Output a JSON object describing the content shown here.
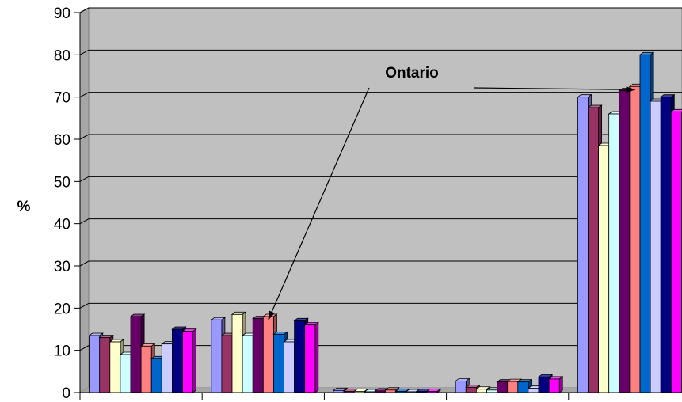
{
  "chart_data": {
    "type": "bar",
    "style": "3d-clustered-column",
    "title": "",
    "xlabel": "",
    "ylabel": "%",
    "ylim": [
      0,
      90
    ],
    "yticks": [
      0,
      10,
      20,
      30,
      40,
      50,
      60,
      70,
      80,
      90
    ],
    "grid": true,
    "categories": [
      "",
      "",
      "",
      "",
      ""
    ],
    "series": [
      {
        "color": "#9999ff",
        "values": [
          13.5,
          17.2,
          0.5,
          2.7,
          70.0
        ]
      },
      {
        "color": "#993366",
        "values": [
          13.0,
          13.5,
          0.3,
          1.2,
          67.5
        ]
      },
      {
        "color": "#ffffcc",
        "values": [
          12.0,
          18.5,
          0.3,
          0.8,
          58.5
        ]
      },
      {
        "color": "#ccffff",
        "values": [
          9.0,
          13.5,
          0.2,
          0.6,
          66.0
        ]
      },
      {
        "color": "#660066",
        "values": [
          18.0,
          17.5,
          0.4,
          2.5,
          71.5
        ]
      },
      {
        "color": "#ff8080",
        "values": [
          11.0,
          18.0,
          0.6,
          2.6,
          72.5
        ]
      },
      {
        "color": "#0066cc",
        "values": [
          8.0,
          13.8,
          0.3,
          2.5,
          80.0
        ]
      },
      {
        "color": "#ccccff",
        "values": [
          11.5,
          12.0,
          0.2,
          1.0,
          69.0
        ]
      },
      {
        "color": "#000080",
        "values": [
          15.0,
          17.0,
          0.3,
          3.7,
          70.0
        ]
      },
      {
        "color": "#ff00ff",
        "values": [
          14.5,
          16.0,
          0.3,
          3.2,
          66.5
        ]
      }
    ],
    "annotations": [
      {
        "text": "Ontario",
        "series_index": 5,
        "targets": [
          1,
          4
        ]
      }
    ],
    "background_color": "#c0c0c0",
    "gridline_color": "#000000"
  }
}
